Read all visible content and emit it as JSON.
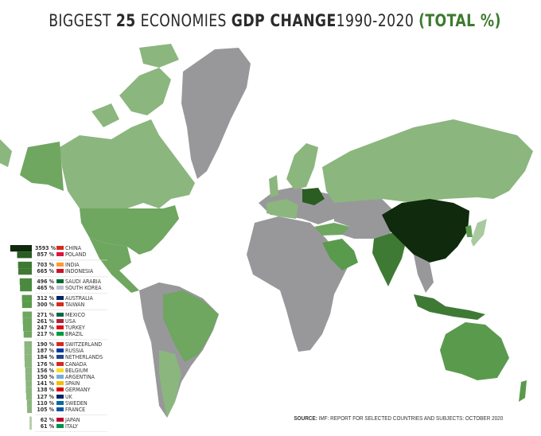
{
  "title": {
    "part1": "BIGGEST",
    "part2": "25",
    "part3": "ECONOMIES",
    "part4": "GDP CHANGE",
    "part5": "1990-2020",
    "part6": "(TOTAL %)"
  },
  "source": {
    "label": "SOURCE:",
    "text": "IMF: REPORT FOR SELECTED COUNTRIES AND SUBJECTS: OCTOBER 2020"
  },
  "colors": {
    "no_data": "#98989b",
    "lowest": "#8bb67e",
    "low": "#6fa660",
    "mid": "#5a9a4c",
    "high": "#3f7a35",
    "very_high": "#2b5c22",
    "top": "#0f2a0c"
  },
  "legend": {
    "groups": [
      [
        {
          "value": "3593 %",
          "country": "CHINA",
          "flag": "#d52b1e"
        },
        {
          "value": "857 %",
          "country": "POLAND",
          "flag": "#dc143c"
        }
      ],
      [
        {
          "value": "703 %",
          "country": "INDIA",
          "flag": "#ff9933"
        },
        {
          "value": "665 %",
          "country": "INDONESIA",
          "flag": "#ce1126"
        }
      ],
      [
        {
          "value": "496 %",
          "country": "SAUDI ARABIA",
          "flag": "#006c35"
        },
        {
          "value": "465 %",
          "country": "SOUTH KOREA",
          "flag": "#c0c0d0"
        }
      ],
      [
        {
          "value": "312 %",
          "country": "AUSTRALIA",
          "flag": "#012169"
        },
        {
          "value": "300 %",
          "country": "TAIWAN",
          "flag": "#d52b1e"
        }
      ],
      [
        {
          "value": "271 %",
          "country": "MEXICO",
          "flag": "#006847"
        },
        {
          "value": "261 %",
          "country": "USA",
          "flag": "#b22234"
        },
        {
          "value": "247 %",
          "country": "TURKEY",
          "flag": "#e30a17"
        },
        {
          "value": "217 %",
          "country": "BRAZIL",
          "flag": "#009c3b"
        }
      ],
      [
        {
          "value": "190 %",
          "country": "SWITZERLAND",
          "flag": "#d52b1e"
        },
        {
          "value": "187 %",
          "country": "RUSSIA",
          "flag": "#0039a6"
        },
        {
          "value": "184 %",
          "country": "NETHERLANDS",
          "flag": "#21468b"
        },
        {
          "value": "176 %",
          "country": "CANADA",
          "flag": "#d52b1e"
        },
        {
          "value": "156 %",
          "country": "BELGIUM",
          "flag": "#fdda24"
        },
        {
          "value": "150 %",
          "country": "ARGENTINA",
          "flag": "#74acdf"
        },
        {
          "value": "141 %",
          "country": "SPAIN",
          "flag": "#f1bf00"
        },
        {
          "value": "138 %",
          "country": "GERMANY",
          "flag": "#dd0000"
        },
        {
          "value": "127 %",
          "country": "UK",
          "flag": "#012169"
        },
        {
          "value": "110 %",
          "country": "SWEDEN",
          "flag": "#006aa7"
        },
        {
          "value": "105 %",
          "country": "FRANCE",
          "flag": "#0055a4"
        }
      ],
      [
        {
          "value": "62 %",
          "country": "JAPAN",
          "flag": "#bc002d"
        },
        {
          "value": "61 %",
          "country": "ITALY",
          "flag": "#009246"
        }
      ]
    ]
  }
}
